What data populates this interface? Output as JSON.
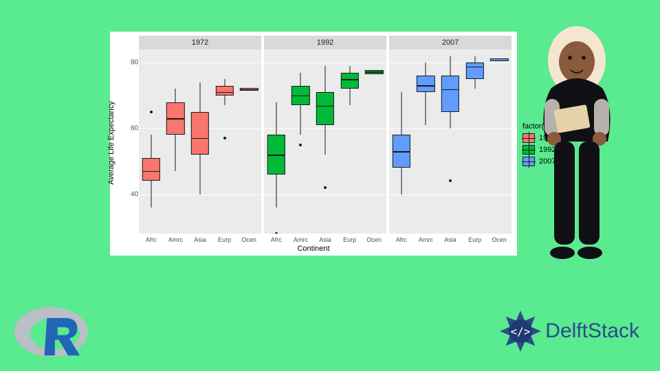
{
  "background_color": "#5aea8f",
  "chart": {
    "type": "boxplot",
    "ylabel": "Average Life Expectancy",
    "xlabel": "Continent",
    "panel_bg": "#ebebeb",
    "strip_bg": "#d9d9d9",
    "grid_color": "#ffffff",
    "ylim": [
      28,
      84
    ],
    "yticks": [
      40,
      60,
      80
    ],
    "categories": [
      "Afrc",
      "Amrc",
      "Asia",
      "Eurp",
      "Ocen"
    ],
    "facets": [
      "1972",
      "1992",
      "2007"
    ],
    "series_colors": {
      "1972": "#f8766d",
      "1992": "#00ba38",
      "2007": "#619cff"
    },
    "data": {
      "1972": {
        "Afrc": {
          "low": 36,
          "q1": 44,
          "med": 47,
          "q3": 51,
          "high": 58,
          "outliers": [
            65
          ]
        },
        "Amrc": {
          "low": 47,
          "q1": 58,
          "med": 63,
          "q3": 68,
          "high": 72,
          "outliers": []
        },
        "Asia": {
          "low": 40,
          "q1": 52,
          "med": 57,
          "q3": 65,
          "high": 74,
          "outliers": []
        },
        "Eurp": {
          "low": 67,
          "q1": 70,
          "med": 71,
          "q3": 73,
          "high": 75,
          "outliers": [
            57
          ]
        },
        "Ocen": {
          "low": 71.5,
          "q1": 71.5,
          "med": 71.9,
          "q3": 72.3,
          "high": 72.3,
          "outliers": []
        }
      },
      "1992": {
        "Afrc": {
          "low": 36,
          "q1": 46,
          "med": 52,
          "q3": 58,
          "high": 68,
          "outliers": [
            28
          ]
        },
        "Amrc": {
          "low": 58,
          "q1": 67,
          "med": 70,
          "q3": 73,
          "high": 77,
          "outliers": [
            55
          ]
        },
        "Asia": {
          "low": 52,
          "q1": 61,
          "med": 67,
          "q3": 71,
          "high": 79,
          "outliers": [
            42
          ]
        },
        "Eurp": {
          "low": 67,
          "q1": 72,
          "med": 75,
          "q3": 77,
          "high": 79,
          "outliers": []
        },
        "Ocen": {
          "low": 76.5,
          "q1": 76.5,
          "med": 77.3,
          "q3": 77.8,
          "high": 77.8,
          "outliers": []
        }
      },
      "2007": {
        "Afrc": {
          "low": 40,
          "q1": 48,
          "med": 53,
          "q3": 58,
          "high": 71,
          "outliers": []
        },
        "Amrc": {
          "low": 61,
          "q1": 71,
          "med": 73,
          "q3": 76,
          "high": 80,
          "outliers": []
        },
        "Asia": {
          "low": 60,
          "q1": 65,
          "med": 72,
          "q3": 76,
          "high": 82,
          "outliers": [
            44
          ]
        },
        "Eurp": {
          "low": 72,
          "q1": 75,
          "med": 79,
          "q3": 80,
          "high": 82,
          "outliers": []
        },
        "Ocen": {
          "low": 80.4,
          "q1": 80.4,
          "med": 80.7,
          "q3": 81.2,
          "high": 81.2,
          "outliers": []
        }
      }
    }
  },
  "legend": {
    "title": "factor(year)",
    "items": [
      {
        "label": "1972",
        "color": "#f8766d"
      },
      {
        "label": "1992",
        "color": "#00ba38"
      },
      {
        "label": "2007",
        "color": "#619cff"
      }
    ]
  },
  "logos": {
    "r_color_ring": "#b9bfc6",
    "r_color_letter": "#2165b6",
    "delft_text": "DelftStack",
    "delft_color": "#2a4b8d"
  },
  "figure": {
    "hijab": "#f6e6cf",
    "skin": "#8a5a3c",
    "top": "#101014",
    "sleeve": "#b7b1ad",
    "pants": "#101014",
    "clipboard": "#e6d2a8"
  }
}
